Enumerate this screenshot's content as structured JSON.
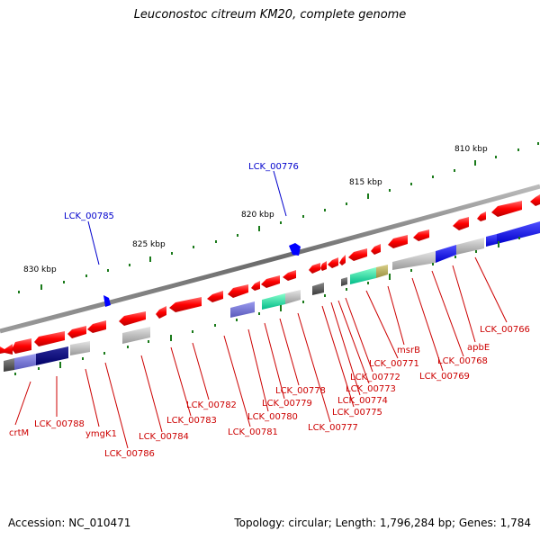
{
  "title": "Leuconostoc citreum KM20, complete genome",
  "footer": {
    "accession": "Accession: NC_010471",
    "summary": "Topology: circular; Length: 1,796,284 bp; Genes: 1,784"
  },
  "scale_labels": [
    "830 kbp",
    "825 kbp",
    "820 kbp",
    "815 kbp",
    "810 kbp"
  ],
  "rna_labels": [
    "LCK_00785",
    "LCK_00776"
  ],
  "gene_labels": [
    "crtM",
    "LCK_00788",
    "ymgK1",
    "LCK_00786",
    "LCK_00784",
    "LCK_00783",
    "LCK_00782",
    "LCK_00781",
    "LCK_00780",
    "LCK_00779",
    "LCK_00778",
    "LCK_00777",
    "LCK_00775",
    "LCK_00774",
    "LCK_00773",
    "LCK_00772",
    "LCK_00771",
    "msrB",
    "LCK_00769",
    "LCK_00768",
    "apbE",
    "LCK_00766"
  ],
  "colors": {
    "cds": "#ff0000",
    "rna": "#0000ff",
    "backbone": "#808080",
    "scale_ticks": "#1a7a1a",
    "gene_label": "#cc0000",
    "rna_label": "#0000cc"
  }
}
